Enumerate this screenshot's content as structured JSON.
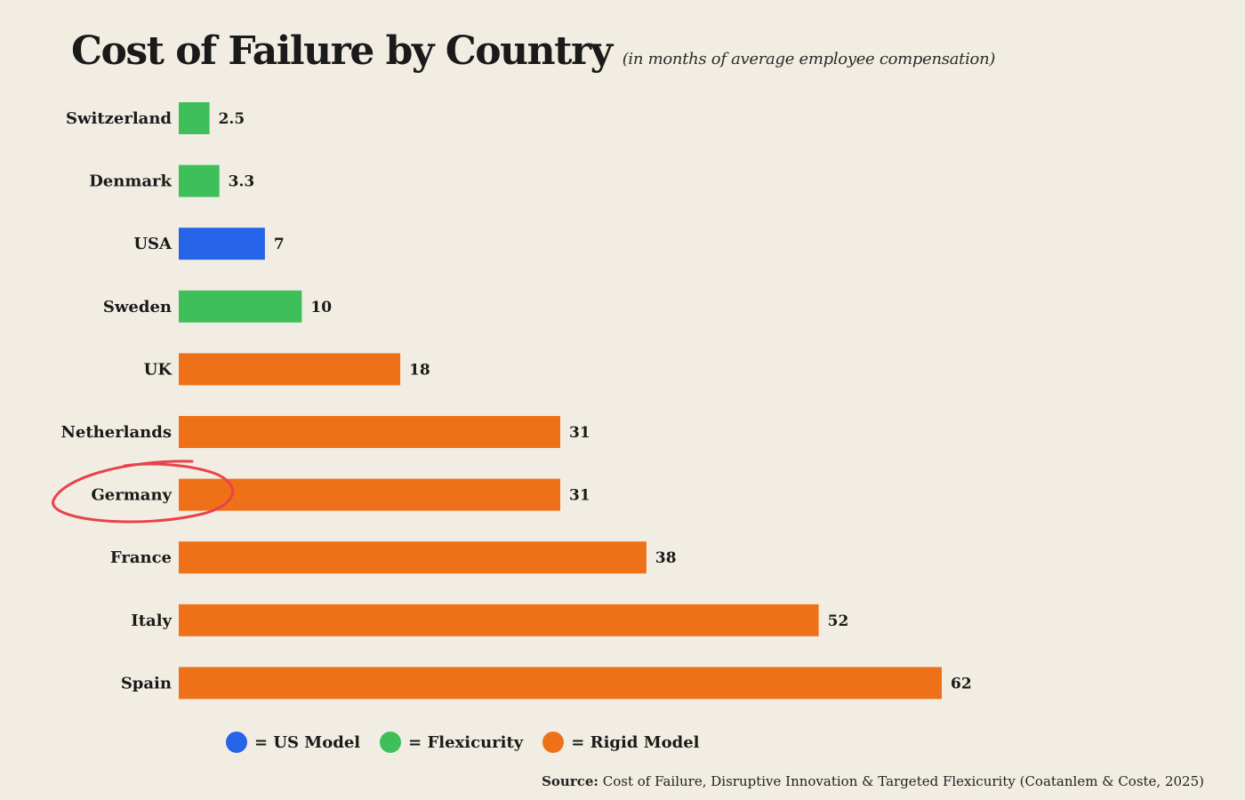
{
  "header": {
    "title": "Cost of Failure by Country",
    "subtitle": "(in months of average employee compensation)"
  },
  "colors": {
    "background": "#f1ede3",
    "us_model": "#2563e8",
    "flexicurity": "#3fbf5a",
    "rigid": "#ee7119",
    "highlight": "#e8434a"
  },
  "chart_data": {
    "type": "bar",
    "orientation": "horizontal",
    "title": "Cost of Failure by Country",
    "subtitle": "(in months of average employee compensation)",
    "categories": [
      "Switzerland",
      "Denmark",
      "USA",
      "Sweden",
      "UK",
      "Netherlands",
      "Germany",
      "France",
      "Italy",
      "Spain"
    ],
    "values": [
      2.5,
      3.3,
      7,
      10,
      18,
      31,
      31,
      38,
      52,
      62
    ],
    "value_labels": [
      "2.5",
      "3.3",
      "7",
      "10",
      "18",
      "31",
      "31",
      "38",
      "52",
      "62"
    ],
    "groups": [
      "flexicurity",
      "flexicurity",
      "us_model",
      "flexicurity",
      "rigid",
      "rigid",
      "rigid",
      "rigid",
      "rigid",
      "rigid"
    ],
    "highlighted_category": "Germany",
    "xlim": [
      0,
      62
    ],
    "grid": false,
    "legend_position": "bottom"
  },
  "legend": [
    {
      "key": "us_model",
      "label": "= US Model"
    },
    {
      "key": "flexicurity",
      "label": "= Flexicurity"
    },
    {
      "key": "rigid",
      "label": "= Rigid Model"
    }
  ],
  "source": {
    "label": "Source:",
    "text": "Cost of Failure, Disruptive Innovation & Targeted Flexicurity (Coatanlem & Coste, 2025)"
  }
}
